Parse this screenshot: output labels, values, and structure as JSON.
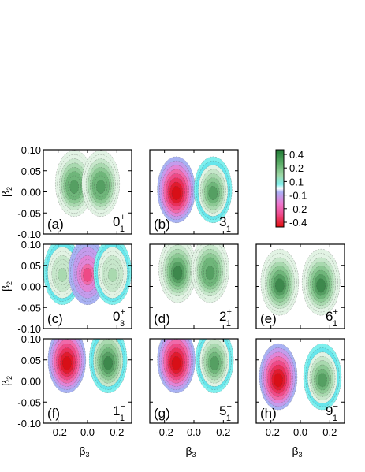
{
  "chart_data": {
    "type": "heatmap",
    "xlabel": "β3",
    "ylabel": "β2",
    "xlim": [
      -0.3,
      0.3
    ],
    "ylim": [
      -0.1,
      0.1
    ],
    "x_ticks": [
      "-0.2",
      "0.0",
      "0.2"
    ],
    "y_ticks": [
      "0.10",
      "0.05",
      "0.00",
      "-0.05",
      "-0.10"
    ],
    "colorbar": {
      "ticks": [
        "0.4",
        "0.2",
        "0.1",
        "-0.1",
        "-0.2",
        "-0.4"
      ],
      "colors": [
        "#1f7a34",
        "#9ed7a6",
        "#7ff0ee",
        "#aab0f6",
        "#ee76ce",
        "#e20f0f"
      ]
    },
    "panels": [
      {
        "label": "(a)",
        "state": "0",
        "sub": "1",
        "sup": "+",
        "sign": 1,
        "blobs": [
          {
            "x": -0.09,
            "y": 0.02,
            "amp": 0.25
          },
          {
            "x": 0.09,
            "y": 0.02,
            "amp": 0.25
          }
        ]
      },
      {
        "label": "(b)",
        "state": "3",
        "sub": "1",
        "sup": "−",
        "sign": -1,
        "blobs": [
          {
            "x": -0.12,
            "y": 0.005,
            "amp": -0.4
          },
          {
            "x": 0.13,
            "y": 0.005,
            "amp": 0.3
          }
        ]
      },
      {
        "label": "(c)",
        "state": "0",
        "sub": "3",
        "sup": "+",
        "sign": 1,
        "blobs": [
          {
            "x": -0.17,
            "y": 0.035,
            "amp": 0.12
          },
          {
            "x": 0.0,
            "y": 0.035,
            "amp": -0.22
          },
          {
            "x": 0.17,
            "y": 0.035,
            "amp": 0.12
          }
        ]
      },
      {
        "label": "(d)",
        "state": "2",
        "sub": "1",
        "sup": "+",
        "sign": 1,
        "blobs": [
          {
            "x": -0.11,
            "y": 0.04,
            "amp": 0.3
          },
          {
            "x": 0.11,
            "y": 0.04,
            "amp": 0.25
          }
        ]
      },
      {
        "label": "(e)",
        "state": "6",
        "sub": "1",
        "sup": "+",
        "sign": 1,
        "blobs": [
          {
            "x": -0.14,
            "y": 0.01,
            "amp": 0.3
          },
          {
            "x": 0.14,
            "y": 0.01,
            "amp": 0.3
          }
        ]
      },
      {
        "label": "(f)",
        "state": "1",
        "sub": "1",
        "sup": "−",
        "sign": -1,
        "blobs": [
          {
            "x": -0.14,
            "y": 0.05,
            "amp": -0.4
          },
          {
            "x": 0.14,
            "y": 0.05,
            "amp": 0.35
          }
        ]
      },
      {
        "label": "(g)",
        "state": "5",
        "sub": "1",
        "sup": "−",
        "sign": -1,
        "blobs": [
          {
            "x": -0.12,
            "y": 0.05,
            "amp": -0.4
          },
          {
            "x": 0.14,
            "y": 0.05,
            "amp": 0.3
          }
        ]
      },
      {
        "label": "(h)",
        "state": "9",
        "sub": "1",
        "sup": "−",
        "sign": -1,
        "blobs": [
          {
            "x": -0.15,
            "y": 0.01,
            "amp": -0.4
          },
          {
            "x": 0.15,
            "y": 0.01,
            "amp": 0.3
          }
        ]
      }
    ]
  }
}
